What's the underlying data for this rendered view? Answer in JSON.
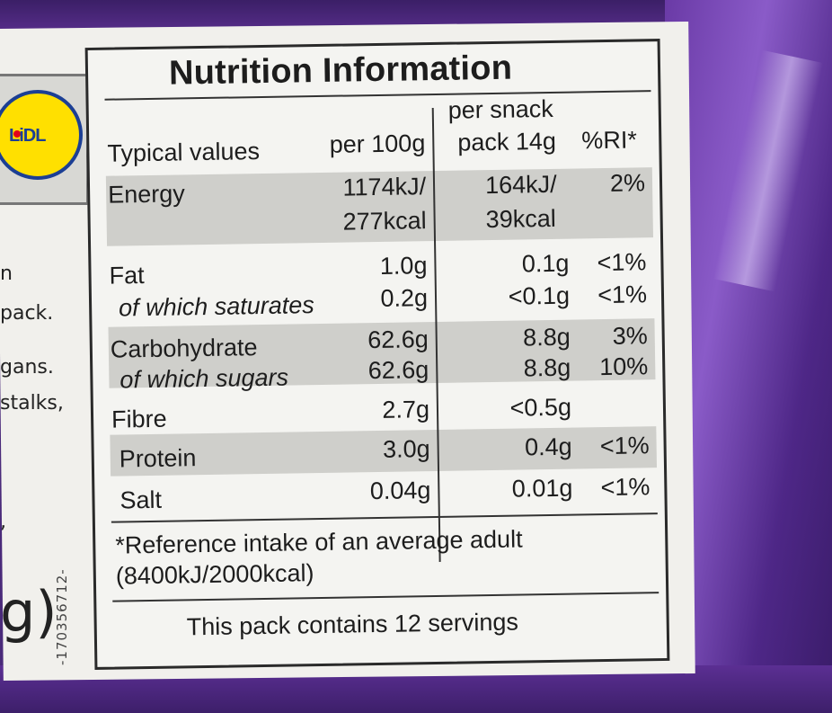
{
  "left_strip": {
    "logo_text": "LiDL",
    "text_lines": [
      "n",
      "pack.",
      "gans.",
      "stalks,",
      ","
    ],
    "code": "-170356712-",
    "weight_fragment": "g)"
  },
  "nutrition": {
    "title": "Nutrition Information",
    "headers": {
      "typical": "Typical values",
      "per100": "per 100g",
      "snack_line1": "per snack",
      "snack_line2": "pack 14g",
      "ri": "%RI*"
    },
    "rows": [
      {
        "name": "Energy",
        "per100_l1": "1174kJ/",
        "per100_l2": "277kcal",
        "snack_l1": "164kJ/",
        "snack_l2": "39kcal",
        "ri": "2%"
      },
      {
        "name": "Fat",
        "per100": "1.0g",
        "snack": "0.1g",
        "ri": "<1%"
      },
      {
        "name": "of which saturates",
        "per100": "0.2g",
        "snack": "<0.1g",
        "ri": "<1%"
      },
      {
        "name": "Carbohydrate",
        "per100": "62.6g",
        "snack": "8.8g",
        "ri": "3%"
      },
      {
        "name": "of which sugars",
        "per100": "62.6g",
        "snack": "8.8g",
        "ri": "10%"
      },
      {
        "name": "Fibre",
        "per100": "2.7g",
        "snack": "<0.5g",
        "ri": ""
      },
      {
        "name": "Protein",
        "per100": "3.0g",
        "snack": "0.4g",
        "ri": "<1%"
      },
      {
        "name": "Salt",
        "per100": "0.04g",
        "snack": "0.01g",
        "ri": "<1%"
      }
    ],
    "footnote_l1": "*Reference intake of an average adult",
    "footnote_l2": "(8400kJ/2000kcal)",
    "servings": "This pack contains 12 servings"
  },
  "colors": {
    "packaging_purple": "#5a2f8f",
    "label_white": "#f1f0ec",
    "logo_yellow": "#ffe000",
    "logo_blue": "#1c3f94"
  }
}
